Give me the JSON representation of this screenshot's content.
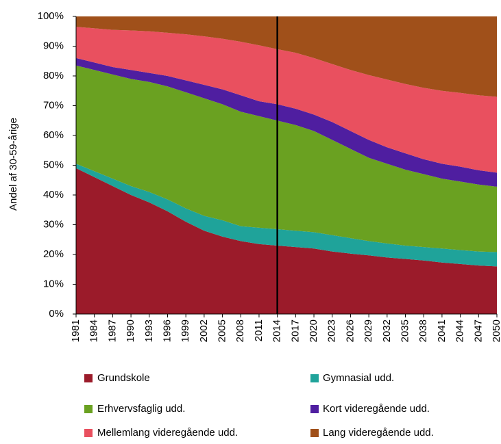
{
  "chart_data": {
    "type": "stacked_area",
    "ylabel": "Andel af 30-59-årige",
    "categories": [
      "1981",
      "1984",
      "1987",
      "1990",
      "1993",
      "1996",
      "1999",
      "2002",
      "2005",
      "2008",
      "2011",
      "2014",
      "2017",
      "2020",
      "2023",
      "2026",
      "2029",
      "2032",
      "2035",
      "2038",
      "2041",
      "2044",
      "2047",
      "2050"
    ],
    "series": [
      {
        "name": "Grundskole",
        "color": "#9b1b2a",
        "values": [
          49,
          46,
          43,
          40,
          37.5,
          34.5,
          31,
          28,
          26,
          24.5,
          23.5,
          23,
          22.5,
          22,
          21,
          20.3,
          19.7,
          19,
          18.5,
          18,
          17.3,
          16.8,
          16.3,
          16
        ]
      },
      {
        "name": "Gymnasial udd.",
        "color": "#1fa39a",
        "values": [
          1.5,
          2,
          2.5,
          3,
          3.5,
          4,
          4.5,
          5,
          5.5,
          5,
          5.5,
          5.5,
          5.5,
          5.5,
          5.5,
          5.2,
          4.8,
          4.7,
          4.5,
          4.5,
          4.7,
          4.7,
          4.7,
          4.8
        ]
      },
      {
        "name": "Erhvervsfaglig udd.",
        "color": "#6aa121",
        "values": [
          33,
          34,
          35,
          36,
          37,
          38,
          39,
          39.5,
          39,
          38.5,
          37.5,
          36.5,
          35.5,
          34,
          32,
          30,
          28,
          26.8,
          25.5,
          24.5,
          23.5,
          23,
          22.5,
          22
        ]
      },
      {
        "name": "Kort videregående udd.",
        "color": "#4f1ea0",
        "values": [
          2.5,
          2.5,
          2.5,
          3,
          3,
          3.5,
          4,
          4.5,
          5,
          5.5,
          5,
          5.5,
          5.5,
          5.5,
          6,
          6,
          6,
          5.5,
          5.5,
          5,
          5,
          5,
          4.8,
          4.7
        ]
      },
      {
        "name": "Mellemlang videregående udd.",
        "color": "#e9505f",
        "values": [
          10.5,
          11.5,
          12.5,
          13.3,
          14,
          14.5,
          15.5,
          16.3,
          17,
          18,
          18.8,
          18.5,
          18.8,
          19,
          19.5,
          20.5,
          21.8,
          22.8,
          23.3,
          24,
          24.5,
          24.8,
          25.2,
          25.5
        ]
      },
      {
        "name": "Lang videregående udd.",
        "color": "#a0501a",
        "values": [
          3.5,
          4,
          4.5,
          4.7,
          5,
          5.5,
          6,
          6.7,
          7.5,
          8.5,
          9.7,
          11,
          12.2,
          14,
          16,
          18,
          19.7,
          21.2,
          22.7,
          24,
          25,
          25.7,
          26.5,
          27
        ]
      }
    ],
    "marker_category": "2014",
    "ylim": [
      0,
      100
    ],
    "yticks": [
      {
        "value": 0,
        "label": "0%"
      },
      {
        "value": 10,
        "label": "10%"
      },
      {
        "value": 20,
        "label": "20%"
      },
      {
        "value": 30,
        "label": "30%"
      },
      {
        "value": 40,
        "label": "40%"
      },
      {
        "value": 50,
        "label": "50%"
      },
      {
        "value": 60,
        "label": "60%"
      },
      {
        "value": 70,
        "label": "70%"
      },
      {
        "value": 80,
        "label": "80%"
      },
      {
        "value": 90,
        "label": "90%"
      },
      {
        "value": 100,
        "label": "100%"
      }
    ]
  }
}
